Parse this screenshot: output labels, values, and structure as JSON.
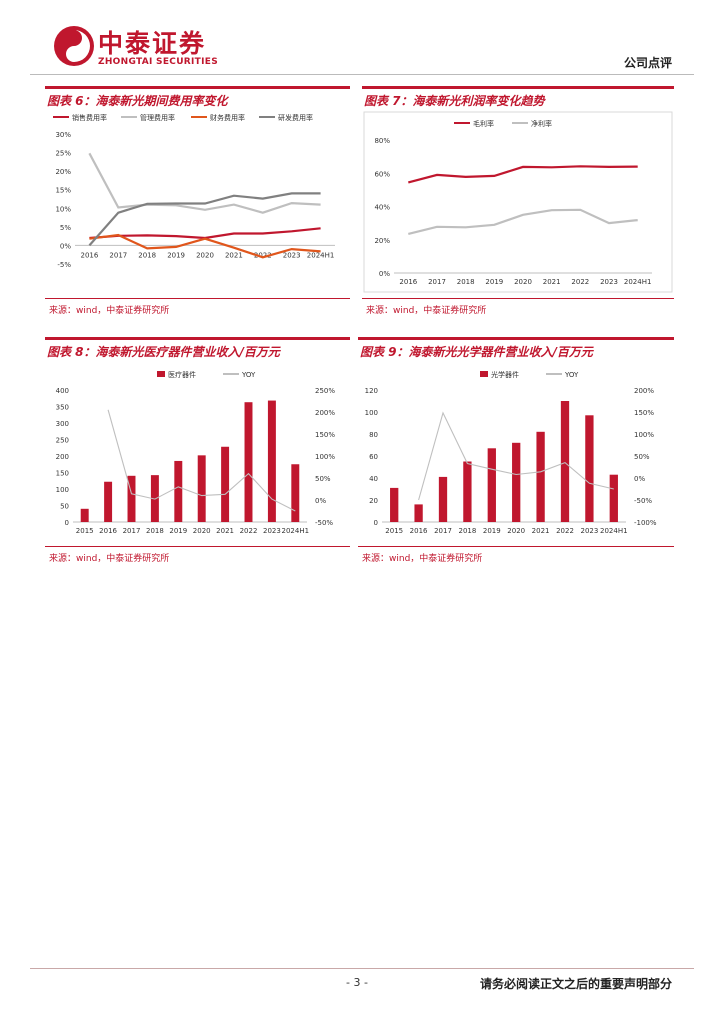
{
  "header": {
    "brand_cn": "中泰证券",
    "brand_en": "ZHONGTAI SECURITIES",
    "doc_type": "公司点评"
  },
  "figures": [
    {
      "title": "图表 6：海泰新光期间费用率变化",
      "source": "来源：wind，中泰证券研究所",
      "chart_data": {
        "type": "line",
        "x": [
          "2016",
          "2017",
          "2018",
          "2019",
          "2020",
          "2021",
          "2022",
          "2023",
          "2024H1"
        ],
        "ylim": [
          -5,
          30
        ],
        "yticks": [
          "30%",
          "25%",
          "20%",
          "15%",
          "10%",
          "5%",
          "0%",
          "-5%"
        ],
        "legend_position": "top",
        "series": [
          {
            "name": "销售费用率",
            "color": "#c0172e",
            "values": [
              2.0,
              2.6,
              2.7,
              2.5,
              2.0,
              3.2,
              3.2,
              3.8,
              4.6
            ]
          },
          {
            "name": "管理费用率",
            "color": "#bfbfbf",
            "values": [
              24.8,
              10.2,
              11.0,
              10.8,
              9.6,
              11.0,
              8.8,
              11.4,
              11.0
            ]
          },
          {
            "name": "财务费用率",
            "color": "#e0561c",
            "values": [
              1.8,
              2.8,
              -0.8,
              -0.4,
              1.8,
              -0.6,
              -3.2,
              -1.0,
              -1.6
            ]
          },
          {
            "name": "研发费用率",
            "color": "#808080",
            "values": [
              0.0,
              8.8,
              11.2,
              11.3,
              11.3,
              13.4,
              12.6,
              14.0,
              14.0
            ]
          }
        ]
      }
    },
    {
      "title": "图表 7：海泰新光利润率变化趋势",
      "source": "来源：wind，中泰证券研究所",
      "chart_data": {
        "type": "line",
        "x": [
          "2016",
          "2017",
          "2018",
          "2019",
          "2020",
          "2021",
          "2022",
          "2023",
          "2024H1"
        ],
        "ylim": [
          0,
          80
        ],
        "yticks": [
          "80%",
          "60%",
          "40%",
          "20%",
          "0%"
        ],
        "legend_position": "top",
        "series": [
          {
            "name": "毛利率",
            "color": "#c0172e",
            "values": [
              54.5,
              59.0,
              57.8,
              58.4,
              63.8,
              63.6,
              64.2,
              63.8,
              64.0
            ]
          },
          {
            "name": "净利率",
            "color": "#bfbfbf",
            "values": [
              23.5,
              27.8,
              27.5,
              29.0,
              35.0,
              37.8,
              38.0,
              30.0,
              31.8
            ]
          }
        ]
      }
    },
    {
      "title": "图表 8：海泰新光医疗器件营业收入/百万元",
      "source": "来源：wind，中泰证券研究所",
      "chart_data": {
        "type": "bar",
        "categories": [
          "2015",
          "2016",
          "2017",
          "2018",
          "2019",
          "2020",
          "2021",
          "2022",
          "2023",
          "2024H1"
        ],
        "ylim": [
          0,
          400
        ],
        "yticks": [
          "400",
          "350",
          "300",
          "250",
          "200",
          "150",
          "100",
          "50",
          "0"
        ],
        "y2lim": [
          -50,
          250
        ],
        "y2ticks": [
          "250%",
          "200%",
          "150%",
          "100%",
          "50%",
          "0%",
          "-50%"
        ],
        "legend_position": "top",
        "series": [
          {
            "name": "医疗器件",
            "color": "#c0172e",
            "axis": "left",
            "values": [
              40,
              122,
              140,
              142,
              185,
              202,
              228,
              363,
              368,
              175
            ]
          },
          {
            "name": "YOY",
            "color": "#bfbfbf",
            "axis": "right",
            "values": [
              null,
              205,
              14,
              2,
              30,
              10,
              13,
              60,
              2,
              -25
            ]
          }
        ]
      }
    },
    {
      "title": "图表 9：海泰新光光学器件营业收入/百万元",
      "source": "来源：wind，中泰证券研究所",
      "chart_data": {
        "type": "bar",
        "categories": [
          "2015",
          "2016",
          "2017",
          "2018",
          "2019",
          "2020",
          "2021",
          "2022",
          "2023",
          "2024H1"
        ],
        "ylim": [
          0,
          120
        ],
        "yticks": [
          "120",
          "100",
          "80",
          "60",
          "40",
          "20",
          "0"
        ],
        "y2lim": [
          -100,
          200
        ],
        "y2ticks": [
          "200%",
          "150%",
          "100%",
          "50%",
          "0%",
          "-50%",
          "-100%"
        ],
        "legend_position": "top",
        "series": [
          {
            "name": "光学器件",
            "color": "#c0172e",
            "axis": "left",
            "values": [
              31,
              16,
              41,
              55,
              67,
              72,
              82,
              110,
              97,
              43
            ]
          },
          {
            "name": "YOY",
            "color": "#bfbfbf",
            "axis": "right",
            "values": [
              null,
              -50,
              148,
              33,
              20,
              8,
              14,
              35,
              -12,
              -25
            ]
          }
        ]
      }
    }
  ],
  "footer": {
    "page_number": "- 3 -",
    "disclaimer": "请务必阅读正文之后的重要声明部分"
  }
}
